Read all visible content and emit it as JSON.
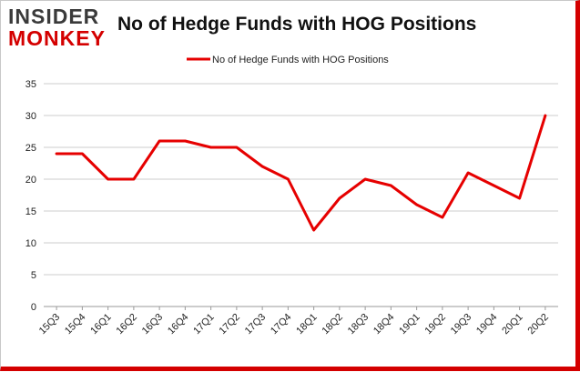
{
  "logo": {
    "line1": "INSIDER",
    "line2": "MONKEY"
  },
  "colors": {
    "series": "#e60000",
    "grid": "#cccccc",
    "brand": "#d40000"
  },
  "chart_data": {
    "type": "line",
    "title": "No of Hedge Funds with HOG Positions",
    "legend_position": "top-center",
    "grid": true,
    "ylim": [
      0,
      35
    ],
    "yticks": [
      0,
      5,
      10,
      15,
      20,
      25,
      30,
      35
    ],
    "categories": [
      "15Q3",
      "15Q4",
      "16Q1",
      "16Q2",
      "16Q3",
      "16Q4",
      "17Q1",
      "17Q2",
      "17Q3",
      "17Q4",
      "18Q1",
      "18Q2",
      "18Q3",
      "18Q4",
      "19Q1",
      "19Q2",
      "19Q3",
      "19Q4",
      "20Q1",
      "20Q2"
    ],
    "series": [
      {
        "name": "No of Hedge Funds with HOG Positions",
        "values": [
          24,
          24,
          20,
          20,
          26,
          26,
          25,
          25,
          22,
          20,
          12,
          17,
          20,
          19,
          16,
          14,
          21,
          19,
          17,
          30
        ]
      }
    ]
  }
}
